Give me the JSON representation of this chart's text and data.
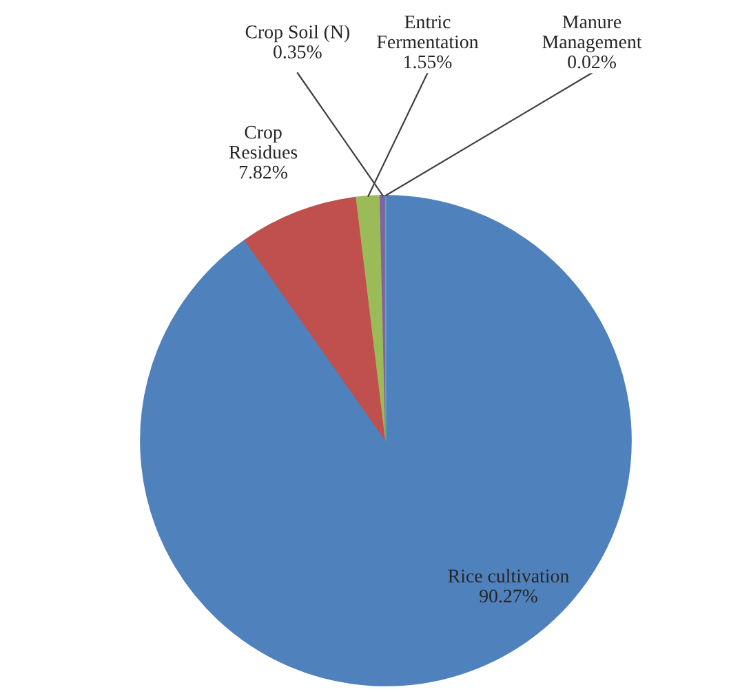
{
  "chart_data": {
    "type": "pie",
    "categories": [
      "Rice cultivation",
      "Crop\nResidues",
      "Entric\nFermentation",
      "Crop Soil (N)",
      "Manure\nManagement"
    ],
    "values": [
      90.27,
      7.82,
      1.55,
      0.35,
      0.02
    ],
    "colors": [
      "#4f81bd",
      "#c0504d",
      "#9bbb59",
      "#8064a2",
      "#4bacc6"
    ],
    "value_labels": [
      "90.27%",
      "7.82%",
      "1.55%",
      "0.35%",
      "0.02%"
    ],
    "legend": false
  }
}
